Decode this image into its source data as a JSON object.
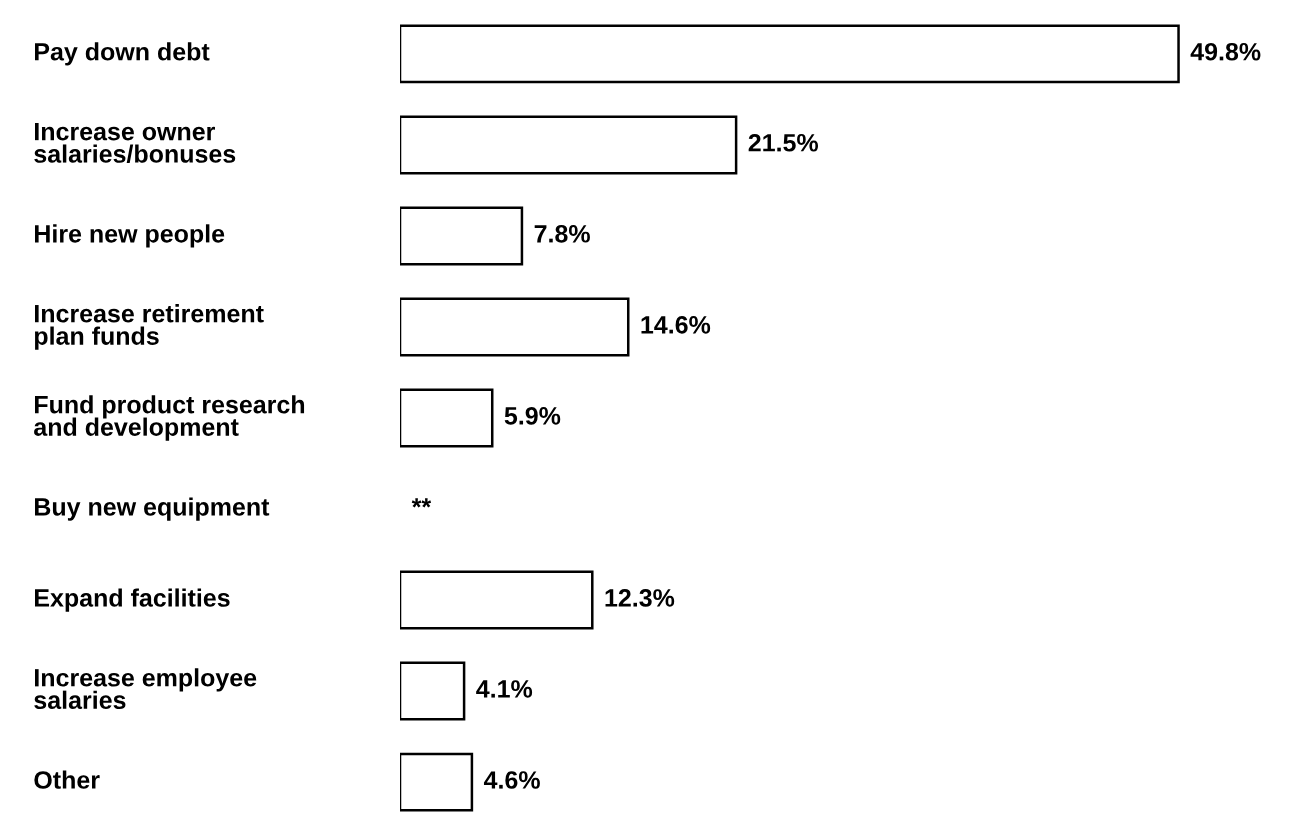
{
  "chart_data": {
    "type": "bar",
    "orientation": "horizontal",
    "categories": [
      "Pay down debt",
      "Increase owner\nsalaries/bonuses",
      "Hire new people",
      "Increase retirement\nplan funds",
      "Fund product research\nand development",
      "Buy new equipment",
      "Expand facilities",
      "Increase employee\nsalaries",
      "Other"
    ],
    "values": [
      49.8,
      21.5,
      7.8,
      14.6,
      5.9,
      null,
      12.3,
      4.1,
      4.6
    ],
    "value_labels": [
      "49.8%",
      "21.5%",
      "7.8%",
      "14.6%",
      "5.9%",
      "**",
      "12.3%",
      "4.1%",
      "4.6%"
    ],
    "color": "#ffffff"
  }
}
